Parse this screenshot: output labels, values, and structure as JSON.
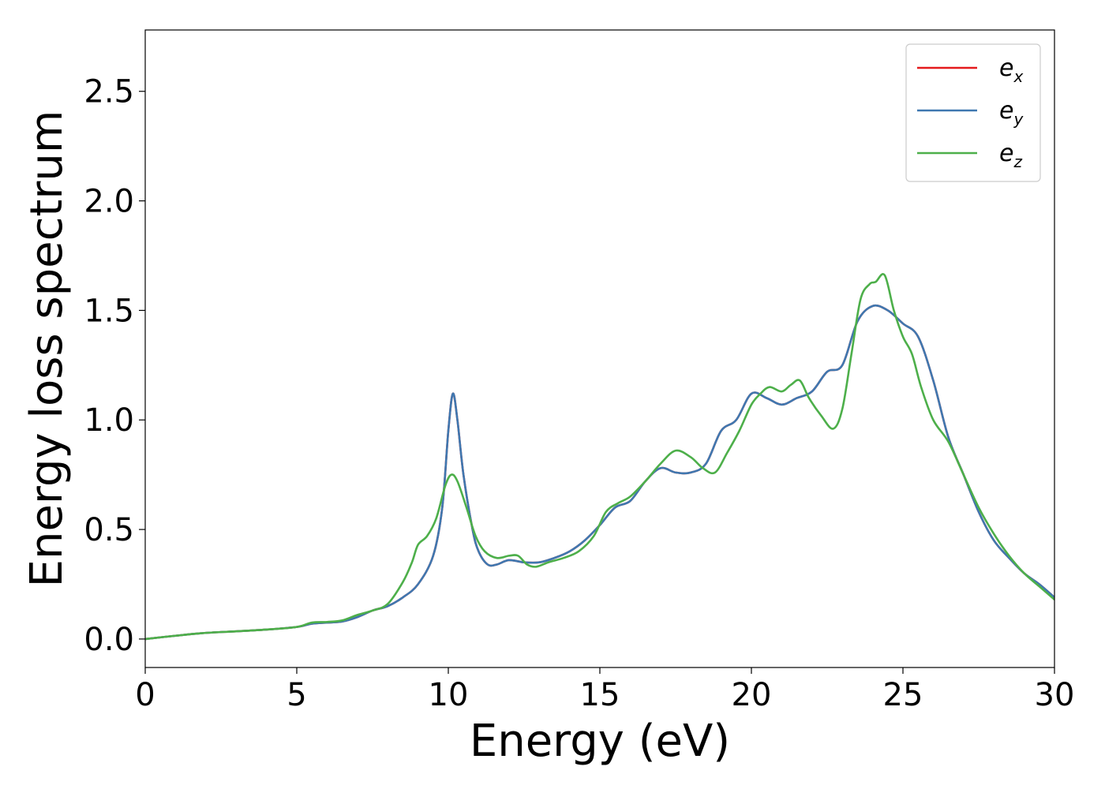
{
  "chart_data": {
    "type": "line",
    "title": "",
    "xlabel": "Energy (eV)",
    "ylabel": "Energy loss spectrum",
    "xlim": [
      0,
      30
    ],
    "ylim": [
      -0.13,
      2.78
    ],
    "xticks": [
      0,
      5,
      10,
      15,
      20,
      25,
      30
    ],
    "xtick_labels": [
      "0",
      "5",
      "10",
      "15",
      "20",
      "25",
      "30"
    ],
    "yticks": [
      0.0,
      0.5,
      1.0,
      1.5,
      2.0,
      2.5
    ],
    "ytick_labels": [
      "0.0",
      "0.5",
      "1.0",
      "1.5",
      "2.0",
      "2.5"
    ],
    "grid": false,
    "legend_position": "top-right",
    "series": [
      {
        "name": "e_x",
        "legend_base": "e",
        "legend_sub": "x",
        "color": "#e41a1c",
        "x": [
          0,
          1,
          2,
          3,
          4,
          5,
          5.5,
          6,
          6.5,
          7,
          7.5,
          8,
          8.5,
          9,
          9.5,
          9.8,
          10,
          10.15,
          10.3,
          10.5,
          10.8,
          11,
          11.3,
          11.6,
          12,
          12.5,
          13,
          13.5,
          14,
          14.5,
          15,
          15.5,
          16,
          16.5,
          17,
          17.5,
          18,
          18.5,
          19,
          19.5,
          20,
          20.5,
          21,
          21.5,
          22,
          22.5,
          23,
          23.5,
          24,
          24.5,
          25,
          25.5,
          26,
          26.5,
          27,
          27.5,
          28,
          28.5,
          29,
          29.5,
          30
        ],
        "values": [
          0,
          0.015,
          0.028,
          0.035,
          0.043,
          0.055,
          0.07,
          0.075,
          0.08,
          0.1,
          0.13,
          0.15,
          0.19,
          0.25,
          0.38,
          0.6,
          0.95,
          1.12,
          1.0,
          0.75,
          0.5,
          0.4,
          0.34,
          0.34,
          0.36,
          0.35,
          0.35,
          0.37,
          0.4,
          0.45,
          0.52,
          0.6,
          0.63,
          0.72,
          0.78,
          0.76,
          0.76,
          0.8,
          0.95,
          1.0,
          1.12,
          1.1,
          1.07,
          1.1,
          1.13,
          1.22,
          1.25,
          1.45,
          1.52,
          1.5,
          1.44,
          1.38,
          1.18,
          0.92,
          0.75,
          0.58,
          0.45,
          0.37,
          0.3,
          0.25,
          0.19
        ]
      },
      {
        "name": "e_y",
        "legend_base": "e",
        "legend_sub": "y",
        "color": "#3f78b0",
        "x": [
          0,
          1,
          2,
          3,
          4,
          5,
          5.5,
          6,
          6.5,
          7,
          7.5,
          8,
          8.5,
          9,
          9.5,
          9.8,
          10,
          10.15,
          10.3,
          10.5,
          10.8,
          11,
          11.3,
          11.6,
          12,
          12.5,
          13,
          13.5,
          14,
          14.5,
          15,
          15.5,
          16,
          16.5,
          17,
          17.5,
          18,
          18.5,
          19,
          19.5,
          20,
          20.5,
          21,
          21.5,
          22,
          22.5,
          23,
          23.5,
          24,
          24.5,
          25,
          25.5,
          26,
          26.5,
          27,
          27.5,
          28,
          28.5,
          29,
          29.5,
          30
        ],
        "values": [
          0,
          0.015,
          0.028,
          0.035,
          0.043,
          0.055,
          0.07,
          0.075,
          0.08,
          0.1,
          0.13,
          0.15,
          0.19,
          0.25,
          0.38,
          0.6,
          0.95,
          1.12,
          1.0,
          0.75,
          0.5,
          0.4,
          0.34,
          0.34,
          0.36,
          0.35,
          0.35,
          0.37,
          0.4,
          0.45,
          0.52,
          0.6,
          0.63,
          0.72,
          0.78,
          0.76,
          0.76,
          0.8,
          0.95,
          1.0,
          1.12,
          1.1,
          1.07,
          1.1,
          1.13,
          1.22,
          1.25,
          1.45,
          1.52,
          1.5,
          1.44,
          1.38,
          1.18,
          0.92,
          0.75,
          0.58,
          0.45,
          0.37,
          0.3,
          0.25,
          0.19
        ]
      },
      {
        "name": "e_z",
        "legend_base": "e",
        "legend_sub": "z",
        "color": "#4daf4a",
        "x": [
          0,
          1,
          2,
          3,
          4,
          5,
          5.5,
          6,
          6.5,
          7,
          7.5,
          8,
          8.5,
          8.8,
          9,
          9.3,
          9.6,
          9.9,
          10.1,
          10.3,
          10.6,
          10.9,
          11.2,
          11.6,
          12,
          12.3,
          12.6,
          12.9,
          13.3,
          13.8,
          14.3,
          14.8,
          15.2,
          15.6,
          16,
          16.5,
          17,
          17.5,
          18,
          18.4,
          18.8,
          19.2,
          19.6,
          20,
          20.3,
          20.6,
          21,
          21.3,
          21.6,
          21.9,
          22.3,
          22.7,
          23,
          23.3,
          23.6,
          23.9,
          24.1,
          24.4,
          24.7,
          25,
          25.3,
          25.6,
          26,
          26.5,
          27,
          27.5,
          28,
          28.5,
          29,
          29.5,
          30
        ],
        "values": [
          0,
          0.015,
          0.028,
          0.035,
          0.043,
          0.055,
          0.075,
          0.078,
          0.085,
          0.11,
          0.13,
          0.16,
          0.26,
          0.35,
          0.43,
          0.47,
          0.55,
          0.7,
          0.75,
          0.72,
          0.6,
          0.47,
          0.4,
          0.37,
          0.38,
          0.38,
          0.34,
          0.33,
          0.35,
          0.37,
          0.4,
          0.47,
          0.58,
          0.62,
          0.65,
          0.72,
          0.8,
          0.86,
          0.83,
          0.78,
          0.76,
          0.85,
          0.95,
          1.07,
          1.12,
          1.15,
          1.13,
          1.16,
          1.18,
          1.1,
          1.02,
          0.96,
          1.05,
          1.3,
          1.55,
          1.62,
          1.63,
          1.66,
          1.5,
          1.38,
          1.3,
          1.15,
          1.0,
          0.9,
          0.75,
          0.6,
          0.48,
          0.38,
          0.3,
          0.24,
          0.18
        ]
      }
    ]
  }
}
